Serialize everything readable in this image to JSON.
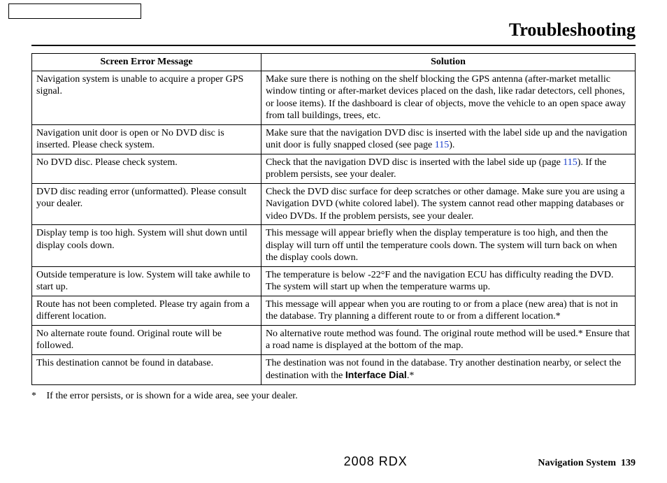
{
  "page_title": "Troubleshooting",
  "table": {
    "headers": {
      "message": "Screen Error Message",
      "solution": "Solution"
    },
    "rows": [
      {
        "message": "Navigation system is unable to acquire a proper GPS signal.",
        "solution": "Make sure there is nothing on the shelf blocking the GPS antenna (after-market metallic window tinting or after-market devices placed on the dash, like radar detectors, cell phones, or loose items). If the dashboard is clear of objects, move the vehicle to an open space away from tall buildings, trees, etc."
      },
      {
        "message": "Navigation unit door is open or No DVD disc is inserted. Please check system.",
        "solution_pre": "Make sure that the navigation DVD disc is inserted with the label side up and the navigation unit door is fully snapped closed (see page ",
        "solution_ref": "115",
        "solution_post": ")."
      },
      {
        "message": "No DVD disc. Please check system.",
        "solution_pre": "Check that the navigation DVD disc is inserted with the label side up (page ",
        "solution_ref": "115",
        "solution_post": "). If the problem persists, see your dealer."
      },
      {
        "message": "DVD disc reading error (unformatted). Please consult your dealer.",
        "solution": "Check the DVD disc surface for deep scratches or other damage. Make sure you are using a Navigation DVD (white colored label). The system cannot read other mapping databases or video DVDs. If the problem persists, see your dealer."
      },
      {
        "message": "Display temp is too high. System will shut down until display cools down.",
        "solution": "This message will appear briefly when the display temperature is too high, and then the display will turn off until the temperature cools down. The system will turn back on when the display cools down."
      },
      {
        "message": "Outside temperature is low. System will take awhile to start up.",
        "solution": "The temperature is below -22°F and the navigation ECU has difficulty reading the DVD. The system will start up when the temperature warms up."
      },
      {
        "message": "Route has not been completed. Please try again from a different location.",
        "solution": "This message will appear when you are routing to or from a place (new area) that is not in the database. Try planning a different route to or from a different location.*"
      },
      {
        "message": "No alternate route found. Original route will be followed.",
        "solution": "No alternative route method was found. The original route method will be used.* Ensure that a road name is displayed at the bottom of the map."
      },
      {
        "message": "This destination cannot be found in database.",
        "solution_pre": "The destination was not found in the database. Try another destination nearby, or select the destination with the ",
        "solution_bold": "Interface Dial",
        "solution_post": ".*"
      }
    ]
  },
  "footnote": {
    "star": "*",
    "text": "If the error persists, or is shown for a wide area, see your dealer."
  },
  "footer": {
    "center": "2008  RDX",
    "right_label": "Navigation System",
    "right_num": "139"
  }
}
